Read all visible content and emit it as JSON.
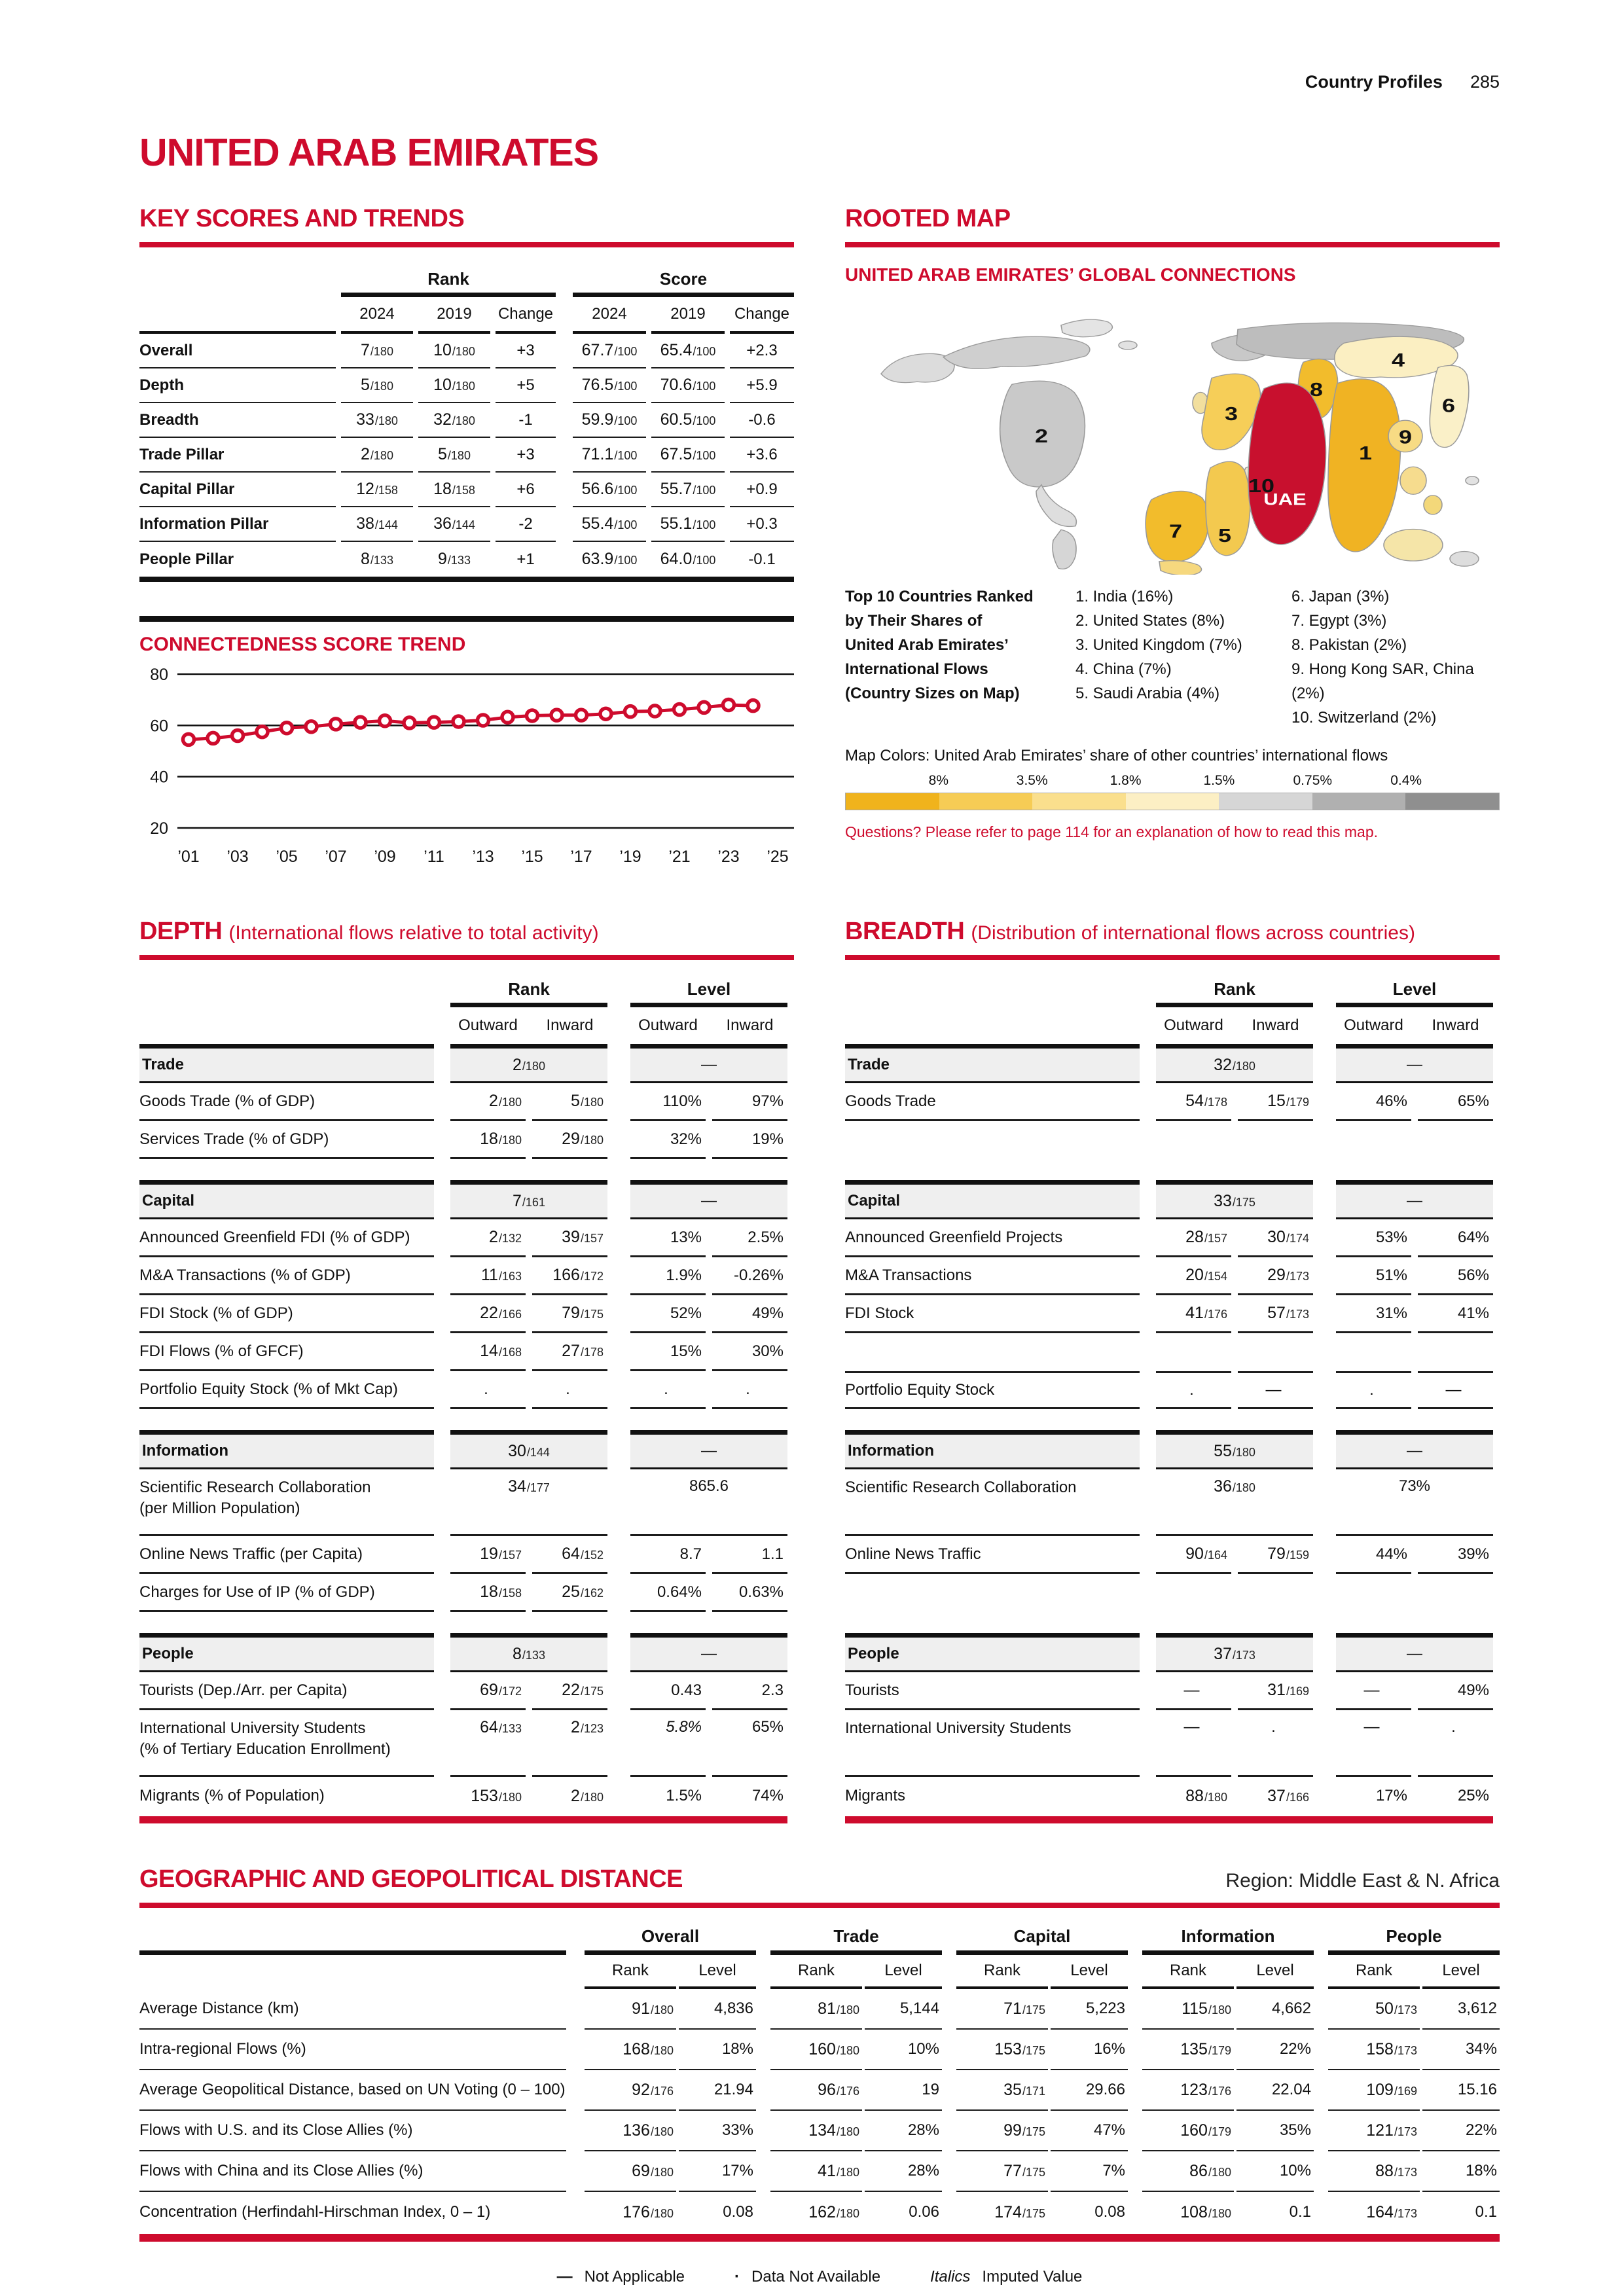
{
  "colors": {
    "accent": "#CE0B2D",
    "uae_red": "#C8102E",
    "gold": "#F0B323"
  },
  "page": {
    "section": "Country Profiles",
    "number": "285",
    "title": "UNITED ARAB EMIRATES"
  },
  "key_scores": {
    "heading": "KEY SCORES AND TRENDS",
    "groups": [
      "Rank",
      "Score"
    ],
    "cols": [
      "2024",
      "2019",
      "Change"
    ],
    "rows": [
      {
        "label": "Overall",
        "rank": [
          [
            "7",
            "180"
          ],
          [
            "10",
            "180"
          ],
          "+3"
        ],
        "score": [
          [
            "67.7",
            "100"
          ],
          [
            "65.4",
            "100"
          ],
          "+2.3"
        ]
      },
      {
        "label": "Depth",
        "rank": [
          [
            "5",
            "180"
          ],
          [
            "10",
            "180"
          ],
          "+5"
        ],
        "score": [
          [
            "76.5",
            "100"
          ],
          [
            "70.6",
            "100"
          ],
          "+5.9"
        ]
      },
      {
        "label": "Breadth",
        "rank": [
          [
            "33",
            "180"
          ],
          [
            "32",
            "180"
          ],
          "-1"
        ],
        "score": [
          [
            "59.9",
            "100"
          ],
          [
            "60.5",
            "100"
          ],
          "-0.6"
        ]
      },
      {
        "label": "Trade Pillar",
        "rank": [
          [
            "2",
            "180"
          ],
          [
            "5",
            "180"
          ],
          "+3"
        ],
        "score": [
          [
            "71.1",
            "100"
          ],
          [
            "67.5",
            "100"
          ],
          "+3.6"
        ]
      },
      {
        "label": "Capital Pillar",
        "rank": [
          [
            "12",
            "158"
          ],
          [
            "18",
            "158"
          ],
          "+6"
        ],
        "score": [
          [
            "56.6",
            "100"
          ],
          [
            "55.7",
            "100"
          ],
          "+0.9"
        ]
      },
      {
        "label": "Information Pillar",
        "rank": [
          [
            "38",
            "144"
          ],
          [
            "36",
            "144"
          ],
          "-2"
        ],
        "score": [
          [
            "55.4",
            "100"
          ],
          [
            "55.1",
            "100"
          ],
          "+0.3"
        ]
      },
      {
        "label": "People Pillar",
        "rank": [
          [
            "8",
            "133"
          ],
          [
            "9",
            "133"
          ],
          "+1"
        ],
        "score": [
          [
            "63.9",
            "100"
          ],
          [
            "64.0",
            "100"
          ],
          "-0.1"
        ]
      }
    ]
  },
  "trend": {
    "heading": "CONNECTEDNESS SCORE TREND",
    "chart_data": {
      "type": "line",
      "x": [
        2001,
        2002,
        2003,
        2004,
        2005,
        2006,
        2007,
        2008,
        2009,
        2010,
        2011,
        2012,
        2013,
        2014,
        2015,
        2016,
        2017,
        2018,
        2019,
        2020,
        2021,
        2022,
        2023,
        2024
      ],
      "values": [
        54.5,
        55.0,
        56.0,
        57.5,
        59.0,
        59.5,
        60.5,
        61.2,
        61.8,
        61.0,
        61.2,
        61.5,
        62.0,
        63.2,
        63.8,
        64.0,
        64.0,
        64.5,
        65.4,
        65.6,
        66.2,
        67.0,
        68.0,
        67.7
      ],
      "title": "CONNECTEDNESS SCORE TREND",
      "xlabel": "",
      "ylabel": "",
      "ylim": [
        20,
        80
      ],
      "yticks": [
        80,
        60,
        40,
        20
      ],
      "xtick_labels": [
        "’01",
        "’03",
        "’05",
        "’07",
        "’09",
        "’11",
        "’13",
        "’15",
        "’17",
        "’19",
        "’21",
        "’23",
        "’25"
      ],
      "grid": "horizontal",
      "legend_position": "none",
      "marker": "open-circle"
    }
  },
  "rooted_map": {
    "heading": "ROOTED MAP",
    "subheading": "UNITED ARAB EMIRATES’ GLOBAL CONNECTIONS",
    "legend_title": [
      "Top 10 Countries Ranked",
      "by Their Shares of",
      "United Arab Emirates’",
      "International Flows",
      "(Country Sizes on Map)"
    ],
    "ranked_col1": [
      "1. India (16%)",
      "2. United States (8%)",
      "3. United Kingdom (7%)",
      "4. China (7%)",
      "5. Saudi Arabia (4%)"
    ],
    "ranked_col2": [
      "6. Japan (3%)",
      "7. Egypt (3%)",
      "8. Pakistan (2%)",
      "9. Hong Kong SAR, China (2%)",
      "10. Switzerland (2%)"
    ],
    "map_labels": {
      "uae": "UAE",
      "n1": "1",
      "n2": "2",
      "n3": "3",
      "n4": "4",
      "n5": "5",
      "n6": "6",
      "n7": "7",
      "n8": "8",
      "n9": "9",
      "n10": "10"
    },
    "map_colors_label": "Map Colors: United Arab Emirates’ share of other countries’ international flows",
    "scale_labels": [
      "8%",
      "3.5%",
      "1.8%",
      "1.5%",
      "0.75%",
      "0.4%"
    ],
    "scale_colors": [
      "#F0B31C",
      "#F6CC55",
      "#FADF8D",
      "#FCEFC4",
      "#D6D6D6",
      "#B0B0B0",
      "#8F8F8F"
    ],
    "note": "Questions? Please refer to page 114 for an explanation of how to read this map."
  },
  "pillar_cols": {
    "groups": [
      "Rank",
      "Level"
    ],
    "cols": [
      "Outward",
      "Inward"
    ]
  },
  "depth": {
    "heading": "DEPTH",
    "subtitle": "(International flows relative to total activity)",
    "sections": [
      {
        "label": "Trade",
        "rank": [
          "2",
          "180"
        ],
        "level": "—",
        "rows": [
          {
            "label": "Goods Trade (% of GDP)",
            "cells": [
              [
                "2",
                "180"
              ],
              [
                "5",
                "180"
              ],
              "110%",
              "97%"
            ]
          },
          {
            "label": "Services Trade (% of GDP)",
            "cells": [
              [
                "18",
                "180"
              ],
              [
                "29",
                "180"
              ],
              "32%",
              "19%"
            ]
          }
        ]
      },
      {
        "label": "Capital",
        "rank": [
          "7",
          "161"
        ],
        "level": "—",
        "rows": [
          {
            "label": "Announced Greenfield FDI (% of GDP)",
            "cells": [
              [
                "2",
                "132"
              ],
              [
                "39",
                "157"
              ],
              "13%",
              "2.5%"
            ]
          },
          {
            "label": "M&A Transactions (% of GDP)",
            "cells": [
              [
                "11",
                "163"
              ],
              [
                "166",
                "172"
              ],
              "1.9%",
              "-0.26%"
            ]
          },
          {
            "label": "FDI Stock (% of GDP)",
            "cells": [
              [
                "22",
                "166"
              ],
              [
                "79",
                "175"
              ],
              "52%",
              "49%"
            ]
          },
          {
            "label": "FDI Flows (% of GFCF)",
            "cells": [
              [
                "14",
                "168"
              ],
              [
                "27",
                "178"
              ],
              "15%",
              "30%"
            ]
          },
          {
            "label": "Portfolio Equity Stock (% of Mkt Cap)",
            "cells": [
              ".",
              ".",
              ".",
              "."
            ]
          }
        ]
      },
      {
        "label": "Information",
        "rank": [
          "30",
          "144"
        ],
        "level": "—",
        "rows": [
          {
            "label": "Scientific Research Collaboration",
            "label2": "(per Million Population)",
            "tall": true,
            "span": true,
            "cells": [
              [
                "34",
                "177"
              ],
              "865.6"
            ]
          },
          {
            "label": "Online News Traffic (per Capita)",
            "cells": [
              [
                "19",
                "157"
              ],
              [
                "64",
                "152"
              ],
              "8.7",
              "1.1"
            ]
          },
          {
            "label": "Charges for Use of IP (% of GDP)",
            "cells": [
              [
                "18",
                "158"
              ],
              [
                "25",
                "162"
              ],
              "0.64%",
              "0.63%"
            ]
          }
        ]
      },
      {
        "label": "People",
        "rank": [
          "8",
          "133"
        ],
        "level": "—",
        "rows": [
          {
            "label": "Tourists (Dep./Arr. per Capita)",
            "cells": [
              [
                "69",
                "172"
              ],
              [
                "22",
                "175"
              ],
              "0.43",
              "2.3"
            ]
          },
          {
            "label": "International University Students",
            "label2": "(% of Tertiary Education Enrollment)",
            "tall": true,
            "cells": [
              [
                "64",
                "133"
              ],
              [
                "2",
                "123"
              ],
              {
                "t": "5.8%",
                "i": true
              },
              "65%"
            ],
            "last_in_col": false
          },
          {
            "label": "Migrants (% of Population)",
            "cells": [
              [
                "153",
                "180"
              ],
              [
                "2",
                "180"
              ],
              "1.5%",
              "74%"
            ],
            "nob": true
          }
        ]
      }
    ]
  },
  "breadth": {
    "heading": "BREADTH",
    "subtitle": "(Distribution of international flows across countries)",
    "sections": [
      {
        "label": "Trade",
        "rank": [
          "32",
          "180"
        ],
        "level": "—",
        "rows": [
          {
            "label": "Goods Trade",
            "cells": [
              [
                "54",
                "178"
              ],
              [
                "15",
                "179"
              ],
              "46%",
              "65%"
            ]
          },
          {
            "spacer": true
          }
        ]
      },
      {
        "label": "Capital",
        "rank": [
          "33",
          "175"
        ],
        "level": "—",
        "rows": [
          {
            "label": "Announced Greenfield Projects",
            "cells": [
              [
                "28",
                "157"
              ],
              [
                "30",
                "174"
              ],
              "53%",
              "64%"
            ]
          },
          {
            "label": "M&A Transactions",
            "cells": [
              [
                "20",
                "154"
              ],
              [
                "29",
                "173"
              ],
              "51%",
              "56%"
            ]
          },
          {
            "label": "FDI Stock",
            "cells": [
              [
                "41",
                "176"
              ],
              [
                "57",
                "173"
              ],
              "31%",
              "41%"
            ]
          },
          {
            "spacer": true
          },
          {
            "label": "Portfolio Equity Stock",
            "bt": true,
            "cells": [
              ".",
              "—",
              ".",
              "—"
            ]
          }
        ]
      },
      {
        "label": "Information",
        "rank": [
          "55",
          "180"
        ],
        "level": "—",
        "rows": [
          {
            "label": "Scientific Research Collaboration",
            "tall": true,
            "span": true,
            "cells": [
              [
                "36",
                "180"
              ],
              "73%"
            ]
          },
          {
            "label": "Online News Traffic",
            "cells": [
              [
                "90",
                "164"
              ],
              [
                "79",
                "159"
              ],
              "44%",
              "39%"
            ]
          },
          {
            "spacer": true
          }
        ]
      },
      {
        "label": "People",
        "rank": [
          "37",
          "173"
        ],
        "level": "—",
        "rows": [
          {
            "label": "Tourists",
            "cells": [
              "—",
              [
                "31",
                "169"
              ],
              "—",
              "49%"
            ]
          },
          {
            "label": "International University Students",
            "tall": true,
            "cells": [
              "—",
              ".",
              "—",
              "."
            ]
          },
          {
            "label": "Migrants",
            "cells": [
              [
                "88",
                "180"
              ],
              [
                "37",
                "166"
              ],
              "17%",
              "25%"
            ],
            "nob": true
          }
        ]
      }
    ]
  },
  "geo": {
    "heading": "GEOGRAPHIC AND GEOPOLITICAL DISTANCE",
    "region": "Region: Middle East & N. Africa",
    "groups": [
      "Overall",
      "Trade",
      "Capital",
      "Information",
      "People"
    ],
    "cols": [
      "Rank",
      "Level"
    ],
    "rows": [
      {
        "label": "Average Distance (km)",
        "cells": [
          [
            "91",
            "180"
          ],
          "4,836",
          [
            "81",
            "180"
          ],
          "5,144",
          [
            "71",
            "175"
          ],
          "5,223",
          [
            "115",
            "180"
          ],
          "4,662",
          [
            "50",
            "173"
          ],
          "3,612"
        ]
      },
      {
        "label": "Intra-regional Flows (%)",
        "cells": [
          [
            "168",
            "180"
          ],
          "18%",
          [
            "160",
            "180"
          ],
          "10%",
          [
            "153",
            "175"
          ],
          "16%",
          [
            "135",
            "179"
          ],
          "22%",
          [
            "158",
            "173"
          ],
          "34%"
        ]
      },
      {
        "label": "Average Geopolitical Distance, based on UN Voting (0 – 100)",
        "cells": [
          [
            "92",
            "176"
          ],
          "21.94",
          [
            "96",
            "176"
          ],
          "19",
          [
            "35",
            "171"
          ],
          "29.66",
          [
            "123",
            "176"
          ],
          "22.04",
          [
            "109",
            "169"
          ],
          "15.16"
        ]
      },
      {
        "label": "Flows with U.S. and its Close Allies (%)",
        "cells": [
          [
            "136",
            "180"
          ],
          "33%",
          [
            "134",
            "180"
          ],
          "28%",
          [
            "99",
            "175"
          ],
          "47%",
          [
            "160",
            "179"
          ],
          "35%",
          [
            "121",
            "173"
          ],
          "22%"
        ]
      },
      {
        "label": "Flows with China and its Close Allies (%)",
        "cells": [
          [
            "69",
            "180"
          ],
          "17%",
          [
            "41",
            "180"
          ],
          "28%",
          [
            "77",
            "175"
          ],
          "7%",
          [
            "86",
            "180"
          ],
          "10%",
          [
            "88",
            "173"
          ],
          "18%"
        ]
      },
      {
        "label": "Concentration (Herfindahl-Hirschman Index, 0 – 1)",
        "cells": [
          [
            "176",
            "180"
          ],
          "0.08",
          [
            "162",
            "180"
          ],
          "0.06",
          [
            "174",
            "175"
          ],
          "0.08",
          [
            "108",
            "180"
          ],
          "0.1",
          [
            "164",
            "173"
          ],
          "0.1"
        ]
      }
    ]
  },
  "footer": {
    "dash": "—",
    "na": "Not Applicable",
    "dot": "·",
    "dna": "Data Not Available",
    "italics": "Italics",
    "imputed": "Imputed Value"
  }
}
